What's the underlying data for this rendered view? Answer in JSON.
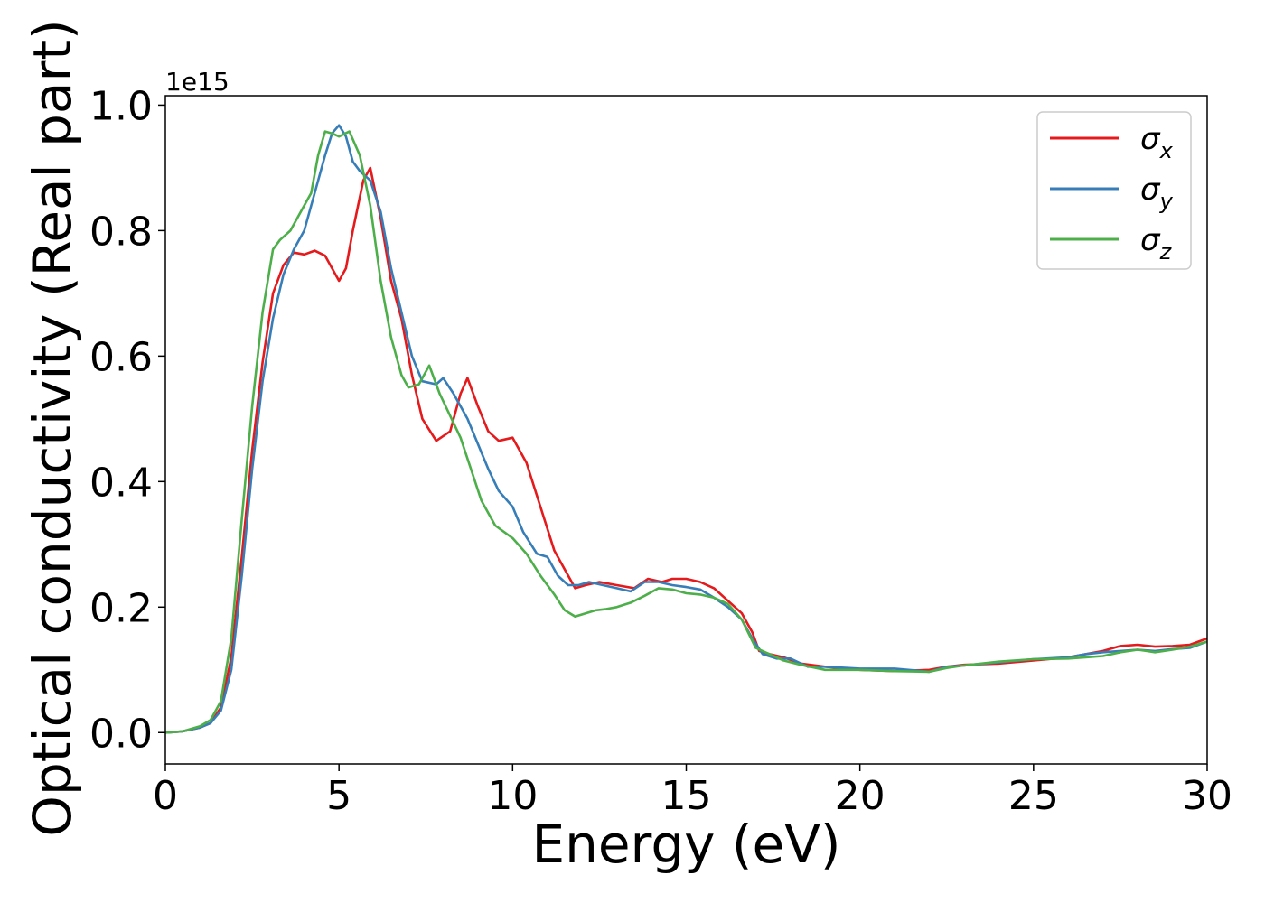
{
  "chart_data": {
    "type": "line",
    "xlabel": "Energy (eV)",
    "ylabel": "Optical conductivity (Real part)",
    "y_offset_label": "1e15",
    "xlim": [
      0,
      30
    ],
    "ylim": [
      -0.05,
      1.015
    ],
    "x_ticks": [
      0,
      5,
      10,
      15,
      20,
      25,
      30
    ],
    "x_tick_labels": [
      "0",
      "5",
      "10",
      "15",
      "20",
      "25",
      "30"
    ],
    "y_ticks": [
      0.0,
      0.2,
      0.4,
      0.6,
      0.8,
      1.0
    ],
    "y_tick_labels": [
      "0.0",
      "0.2",
      "0.4",
      "0.6",
      "0.8",
      "1.0"
    ],
    "grid": false,
    "legend_position": "top-right",
    "series": [
      {
        "name": "σx",
        "legend_base": "σ",
        "legend_sub": "x",
        "color": "#e41a1c",
        "x": [
          0,
          0.5,
          1.0,
          1.3,
          1.6,
          1.9,
          2.2,
          2.5,
          2.8,
          3.1,
          3.4,
          3.7,
          4.0,
          4.3,
          4.6,
          4.8,
          5.0,
          5.2,
          5.4,
          5.7,
          5.9,
          6.2,
          6.5,
          6.8,
          7.1,
          7.4,
          7.8,
          8.2,
          8.5,
          8.7,
          9.0,
          9.3,
          9.6,
          10.0,
          10.4,
          10.8,
          11.2,
          11.5,
          11.8,
          12.1,
          12.5,
          13.0,
          13.5,
          13.9,
          14.3,
          14.6,
          15.0,
          15.4,
          15.8,
          16.2,
          16.6,
          16.9,
          17.1,
          17.4,
          17.8,
          18.3,
          19.0,
          20.0,
          21.0,
          22.0,
          22.5,
          23.0,
          24.0,
          25.0,
          26.0,
          26.5,
          27.0,
          27.5,
          28.0,
          28.5,
          29.0,
          29.5,
          30.0
        ],
        "values": [
          0.0,
          0.002,
          0.008,
          0.015,
          0.04,
          0.12,
          0.28,
          0.45,
          0.59,
          0.7,
          0.745,
          0.765,
          0.762,
          0.768,
          0.76,
          0.74,
          0.72,
          0.74,
          0.8,
          0.88,
          0.9,
          0.82,
          0.72,
          0.66,
          0.57,
          0.5,
          0.465,
          0.48,
          0.54,
          0.565,
          0.52,
          0.48,
          0.465,
          0.47,
          0.43,
          0.36,
          0.29,
          0.26,
          0.23,
          0.235,
          0.24,
          0.235,
          0.23,
          0.245,
          0.24,
          0.245,
          0.245,
          0.24,
          0.23,
          0.21,
          0.19,
          0.16,
          0.13,
          0.125,
          0.12,
          0.11,
          0.105,
          0.1,
          0.098,
          0.1,
          0.105,
          0.108,
          0.11,
          0.115,
          0.12,
          0.125,
          0.13,
          0.138,
          0.14,
          0.137,
          0.138,
          0.14,
          0.15
        ]
      },
      {
        "name": "σy",
        "legend_base": "σ",
        "legend_sub": "y",
        "color": "#377eb8",
        "x": [
          0,
          0.5,
          1.0,
          1.3,
          1.6,
          1.9,
          2.2,
          2.5,
          2.8,
          3.1,
          3.4,
          3.7,
          4.0,
          4.3,
          4.6,
          4.8,
          5.0,
          5.2,
          5.4,
          5.6,
          5.9,
          6.2,
          6.5,
          6.8,
          7.1,
          7.4,
          7.8,
          8.0,
          8.3,
          8.7,
          9.0,
          9.3,
          9.6,
          10.0,
          10.3,
          10.7,
          11.0,
          11.3,
          11.6,
          11.9,
          12.2,
          12.6,
          13.0,
          13.4,
          13.8,
          14.2,
          14.6,
          15.0,
          15.4,
          15.8,
          16.2,
          16.6,
          16.9,
          17.2,
          17.6,
          18.0,
          18.5,
          19.0,
          20.0,
          21.0,
          22.0,
          22.5,
          23.0,
          24.0,
          25.0,
          26.0,
          26.5,
          27.0,
          27.5,
          28.0,
          28.5,
          29.0,
          29.5,
          30.0
        ],
        "values": [
          0.0,
          0.002,
          0.008,
          0.015,
          0.035,
          0.1,
          0.25,
          0.42,
          0.56,
          0.66,
          0.73,
          0.77,
          0.8,
          0.86,
          0.92,
          0.955,
          0.968,
          0.95,
          0.91,
          0.895,
          0.88,
          0.83,
          0.74,
          0.67,
          0.6,
          0.56,
          0.555,
          0.565,
          0.54,
          0.5,
          0.46,
          0.42,
          0.385,
          0.36,
          0.32,
          0.285,
          0.28,
          0.25,
          0.235,
          0.235,
          0.24,
          0.235,
          0.23,
          0.225,
          0.24,
          0.24,
          0.235,
          0.232,
          0.228,
          0.215,
          0.2,
          0.18,
          0.15,
          0.125,
          0.118,
          0.118,
          0.105,
          0.105,
          0.102,
          0.102,
          0.097,
          0.105,
          0.107,
          0.112,
          0.117,
          0.12,
          0.125,
          0.128,
          0.13,
          0.132,
          0.13,
          0.133,
          0.135,
          0.145
        ]
      },
      {
        "name": "σz",
        "legend_base": "σ",
        "legend_sub": "z",
        "color": "#4daf4a",
        "x": [
          0,
          0.5,
          1.0,
          1.3,
          1.6,
          1.9,
          2.2,
          2.5,
          2.8,
          3.1,
          3.3,
          3.6,
          3.9,
          4.2,
          4.4,
          4.6,
          4.8,
          5.0,
          5.3,
          5.6,
          5.9,
          6.2,
          6.5,
          6.8,
          7.0,
          7.3,
          7.6,
          7.9,
          8.2,
          8.5,
          8.8,
          9.1,
          9.5,
          10.0,
          10.4,
          10.8,
          11.2,
          11.5,
          11.8,
          12.1,
          12.4,
          12.7,
          13.0,
          13.4,
          13.8,
          14.2,
          14.6,
          15.0,
          15.4,
          15.8,
          16.2,
          16.6,
          17.0,
          17.4,
          17.8,
          18.3,
          19.0,
          20.0,
          21.0,
          22.0,
          22.5,
          23.0,
          24.0,
          25.0,
          26.0,
          26.5,
          27.0,
          27.5,
          28.0,
          28.5,
          29.0,
          29.5,
          30.0
        ],
        "values": [
          0.0,
          0.002,
          0.01,
          0.02,
          0.05,
          0.15,
          0.34,
          0.52,
          0.67,
          0.77,
          0.785,
          0.8,
          0.83,
          0.86,
          0.92,
          0.958,
          0.955,
          0.95,
          0.958,
          0.92,
          0.84,
          0.72,
          0.63,
          0.57,
          0.55,
          0.555,
          0.585,
          0.54,
          0.505,
          0.47,
          0.42,
          0.37,
          0.33,
          0.31,
          0.285,
          0.25,
          0.22,
          0.195,
          0.185,
          0.19,
          0.195,
          0.197,
          0.2,
          0.207,
          0.218,
          0.23,
          0.228,
          0.222,
          0.22,
          0.215,
          0.205,
          0.18,
          0.135,
          0.125,
          0.115,
          0.108,
          0.1,
          0.1,
          0.098,
          0.097,
          0.103,
          0.107,
          0.113,
          0.117,
          0.118,
          0.12,
          0.122,
          0.128,
          0.132,
          0.128,
          0.132,
          0.137,
          0.145
        ]
      }
    ]
  }
}
